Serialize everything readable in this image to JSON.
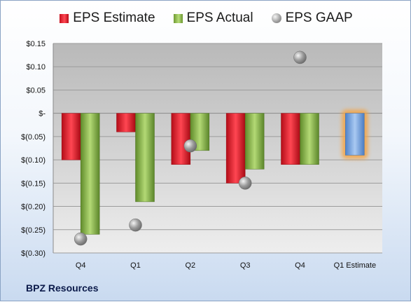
{
  "legend": {
    "estimate": "EPS Estimate",
    "actual": "EPS Actual",
    "gaap": "EPS GAAP"
  },
  "company": "BPZ Resources",
  "colors": {
    "estimate": "#e0202c",
    "actual": "#8cbb4a",
    "gaap": "#a0a0a0",
    "forecast": "#6ea0e0",
    "forecast_glow": "#f5a340"
  },
  "chart_data": {
    "type": "bar",
    "categories": [
      "Q4",
      "Q1",
      "Q2",
      "Q3",
      "Q4",
      "Q1 Estimate"
    ],
    "series": [
      {
        "name": "EPS Estimate",
        "values": [
          -0.1,
          -0.04,
          -0.11,
          -0.15,
          -0.11,
          null
        ]
      },
      {
        "name": "EPS Actual",
        "values": [
          -0.26,
          -0.19,
          -0.08,
          -0.12,
          -0.11,
          null
        ]
      },
      {
        "name": "EPS GAAP",
        "type": "scatter",
        "values": [
          -0.27,
          -0.24,
          -0.07,
          -0.15,
          0.12,
          null
        ]
      },
      {
        "name": "",
        "values": [
          null,
          null,
          null,
          null,
          null,
          -0.09
        ]
      }
    ],
    "ylim": [
      -0.3,
      0.15
    ],
    "y_ticks": [
      {
        "value": 0.15,
        "label": "$0.15"
      },
      {
        "value": 0.1,
        "label": "$0.10"
      },
      {
        "value": 0.05,
        "label": "$0.05"
      },
      {
        "value": 0,
        "label": "$-"
      },
      {
        "value": -0.05,
        "label": "$(0.05)"
      },
      {
        "value": -0.1,
        "label": "$(0.10)"
      },
      {
        "value": -0.15,
        "label": "$(0.15)"
      },
      {
        "value": -0.2,
        "label": "$(0.20)"
      },
      {
        "value": -0.25,
        "label": "$(0.25)"
      },
      {
        "value": -0.3,
        "label": "$(0.30)"
      }
    ],
    "grid": true,
    "legend_position": "top"
  }
}
